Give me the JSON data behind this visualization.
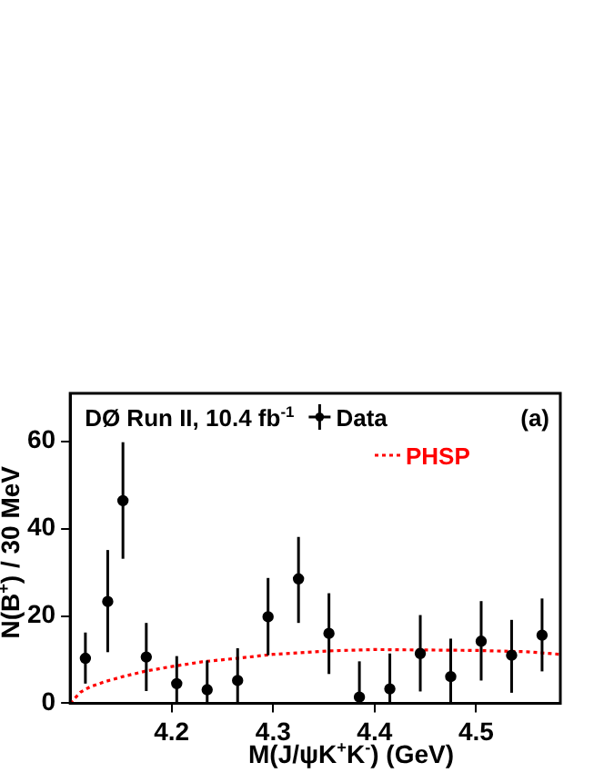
{
  "chart_data": {
    "type": "scatter",
    "xlabel": "M(J/ψK$^{+}$K$^{-}$) (GeV)",
    "ylabel": "N(B$^{+}$) / 30 MeV",
    "annotations": [
      "DØ Run II, 10.4 fb$^{-1}$",
      "(a)"
    ],
    "xlim": [
      4.1,
      4.583
    ],
    "xticks": [
      4.2,
      4.3,
      4.4,
      4.5
    ],
    "ylim": [
      0,
      71
    ],
    "yticks": [
      0,
      20,
      40,
      60
    ],
    "grid": false,
    "legend": "top right",
    "series": [
      {
        "name": "Data",
        "type": "scatter",
        "marker": "circle",
        "color": "#000000",
        "x": [
          4.115,
          4.137,
          4.152,
          4.175,
          4.205,
          4.235,
          4.265,
          4.295,
          4.325,
          4.355,
          4.385,
          4.415,
          4.445,
          4.475,
          4.505,
          4.535,
          4.565
        ],
        "values": [
          10.3,
          23.3,
          46.4,
          10.6,
          4.5,
          3.1,
          5.2,
          19.8,
          28.5,
          16.0,
          1.4,
          3.3,
          11.4,
          6.1,
          14.2,
          11.0,
          15.6
        ],
        "errors": [
          [
            4.5,
            16.2
          ],
          [
            11.7,
            35.1
          ],
          [
            33.1,
            59.8
          ],
          [
            2.8,
            18.4
          ],
          [
            0,
            10.8
          ],
          [
            0,
            9.8
          ],
          [
            0,
            12.6
          ],
          [
            11.0,
            28.7
          ],
          [
            18.4,
            38.1
          ],
          [
            6.7,
            25.2
          ],
          [
            0,
            9.6
          ],
          [
            0,
            11.4
          ],
          [
            2.7,
            20.2
          ],
          [
            0,
            14.8
          ],
          [
            5.2,
            23.4
          ],
          [
            2.4,
            19.1
          ],
          [
            7.3,
            24.0
          ]
        ]
      },
      {
        "name": "PHSP",
        "type": "line",
        "marker": "none",
        "line_style": "dotted",
        "color": "#ff0000",
        "x": [
          4.1,
          4.11,
          4.12,
          4.135,
          4.152,
          4.175,
          4.2,
          4.23,
          4.265,
          4.3,
          4.355,
          4.4,
          4.45,
          4.5,
          4.55,
          4.583
        ],
        "values": [
          0,
          2.5,
          3.8,
          5.0,
          6.1,
          7.4,
          8.4,
          9.5,
          10.3,
          11.2,
          12.0,
          12.3,
          12.2,
          12.1,
          11.8,
          11.2
        ]
      }
    ]
  }
}
